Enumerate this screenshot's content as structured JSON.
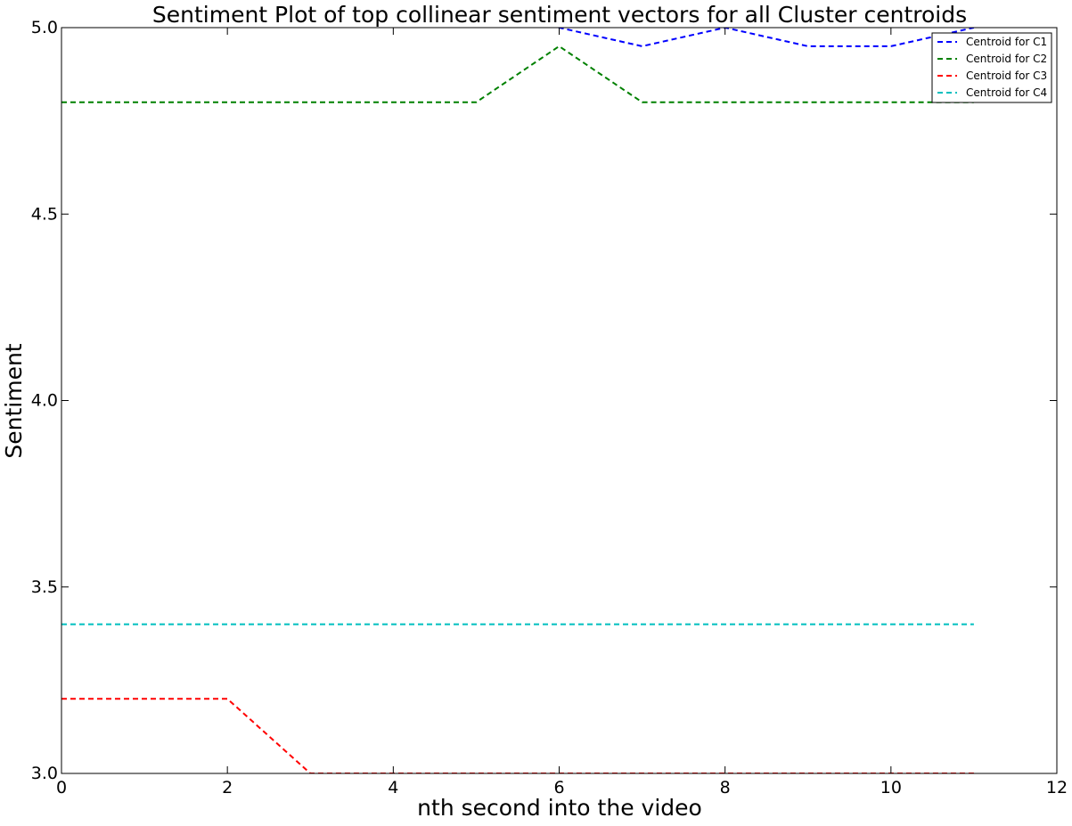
{
  "chart_data": {
    "type": "line",
    "title": "Sentiment Plot of top collinear sentiment vectors for all Cluster centroids",
    "xlabel": "nth second into the video",
    "ylabel": "Sentiment",
    "xlim": [
      0,
      12
    ],
    "ylim": [
      3.0,
      5.0
    ],
    "xticks": [
      0,
      2,
      4,
      6,
      8,
      10,
      12
    ],
    "yticks": [
      3.0,
      3.5,
      4.0,
      4.5,
      5.0
    ],
    "xtick_labels": [
      "0",
      "2",
      "4",
      "6",
      "8",
      "10",
      "12"
    ],
    "ytick_labels": [
      "3.0",
      "3.5",
      "4.0",
      "4.5",
      "5.0"
    ],
    "grid": false,
    "line_style": "dashed",
    "legend_position": "top-right",
    "x": [
      0,
      1,
      2,
      3,
      4,
      5,
      6,
      7,
      8,
      9,
      10,
      11
    ],
    "series": [
      {
        "name": "Centroid for C1",
        "color": "#0000ff",
        "values": [
          5.05,
          5.05,
          5.05,
          5.05,
          5.05,
          5.05,
          5.0,
          4.95,
          5.0,
          4.95,
          4.95,
          5.0
        ]
      },
      {
        "name": "Centroid for C2",
        "color": "#008000",
        "values": [
          4.8,
          4.8,
          4.8,
          4.8,
          4.8,
          4.8,
          4.95,
          4.8,
          4.8,
          4.8,
          4.8,
          4.8
        ]
      },
      {
        "name": "Centroid for C3",
        "color": "#ff0000",
        "values": [
          3.2,
          3.2,
          3.2,
          3.0,
          3.0,
          3.0,
          3.0,
          3.0,
          3.0,
          3.0,
          3.0,
          3.0
        ]
      },
      {
        "name": "Centroid for C4",
        "color": "#00bfbf",
        "values": [
          3.4,
          3.4,
          3.4,
          3.4,
          3.4,
          3.4,
          3.4,
          3.4,
          3.4,
          3.4,
          3.4,
          3.4
        ]
      }
    ]
  }
}
